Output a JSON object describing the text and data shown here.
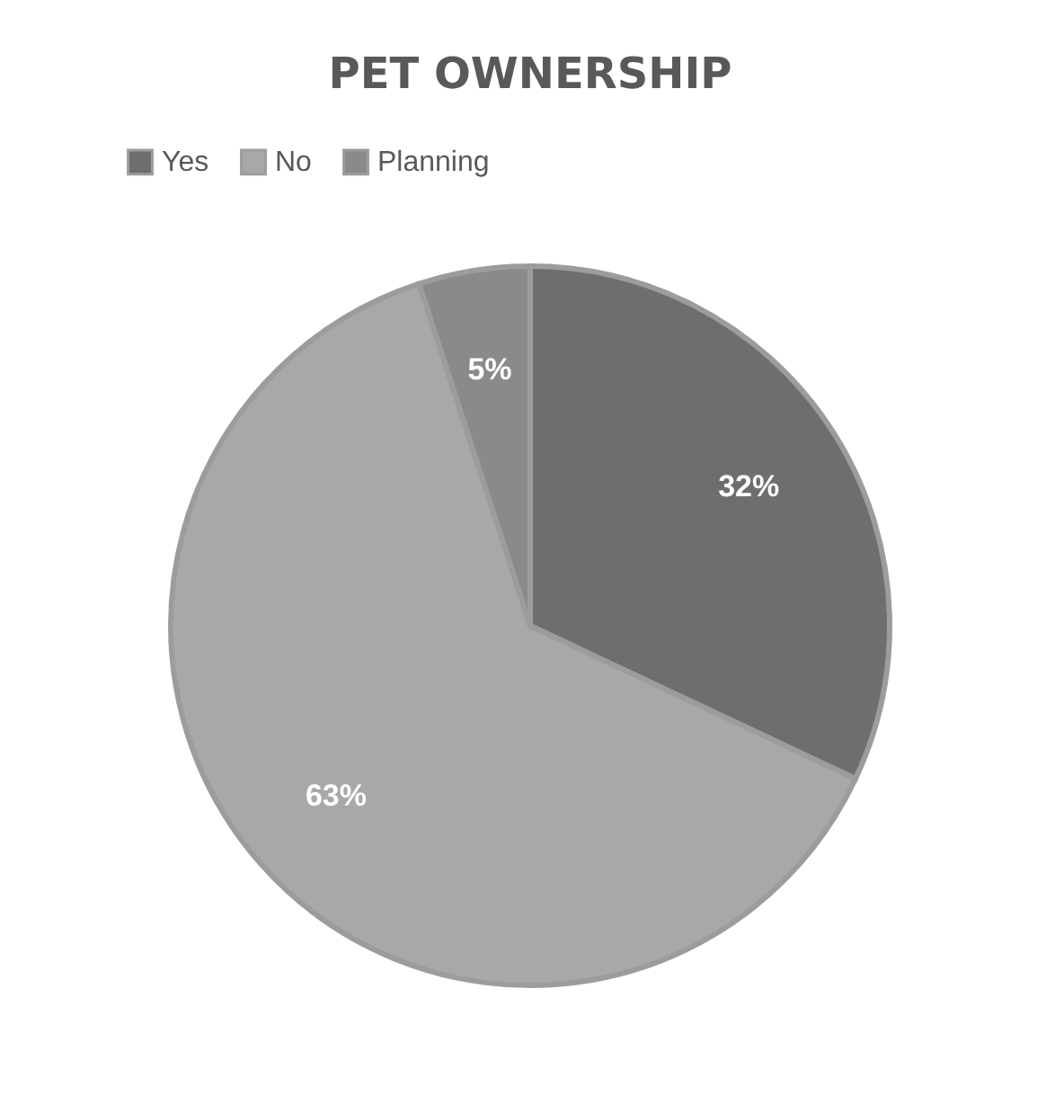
{
  "chart_data": {
    "type": "pie",
    "title": "PET OWNERSHIP",
    "categories": [
      "Yes",
      "No",
      "Planning"
    ],
    "values": [
      32,
      63,
      5
    ],
    "colors": [
      "#6e6e6e",
      "#a8a8a8",
      "#8a8a8a"
    ],
    "value_labels": [
      "32%",
      "63%",
      "5%"
    ],
    "legend": "top"
  }
}
